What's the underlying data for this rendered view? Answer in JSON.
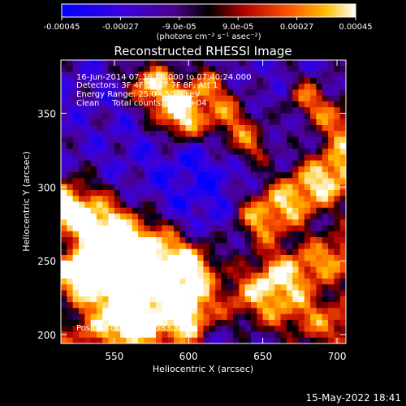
{
  "chart_data": {
    "type": "heatmap",
    "title": "Reconstructed RHESSI Image",
    "xlabel": "Heliocentric X (arcsec)",
    "ylabel": "Heliocentric Y (arcsec)",
    "xlim": [
      514,
      706
    ],
    "ylim": [
      194,
      386
    ],
    "xticks": [
      550,
      600,
      650,
      700
    ],
    "yticks": [
      200,
      250,
      300,
      350
    ],
    "colorbar": {
      "range": [
        -0.00045,
        0.00045
      ],
      "tick_values": [
        -0.00045,
        -0.00027,
        -9e-05,
        9e-05,
        0.00027,
        0.00045
      ],
      "tick_labels": [
        "-0.00045",
        "-0.00027",
        "-9.0e-05",
        "9.0e-05",
        "0.00027",
        "0.00045"
      ],
      "units": "(photons cm⁻² s⁻¹ asec⁻²)"
    },
    "annotations": [
      "16-Jun-2014 07:36:28.000 to 07:40:24.000",
      "Detectors: 3F 4F 5F 6F 7F 8F, Att 1",
      "Energy Range: 25.0 - 50.0 keV",
      "Clean     Total counts: 1.10E+04",
      "Position of Peak = [583,342]"
    ],
    "peak": {
      "x": 583,
      "y": 342
    },
    "grid": false,
    "image_grid": {
      "nx": 48,
      "ny": 48,
      "note": "flux per pixel in photons cm^-2 s^-1 asec^-2; generated field approximating the bright emission ridges"
    }
  },
  "footer": {
    "date": "15-May-2022 18:41"
  }
}
